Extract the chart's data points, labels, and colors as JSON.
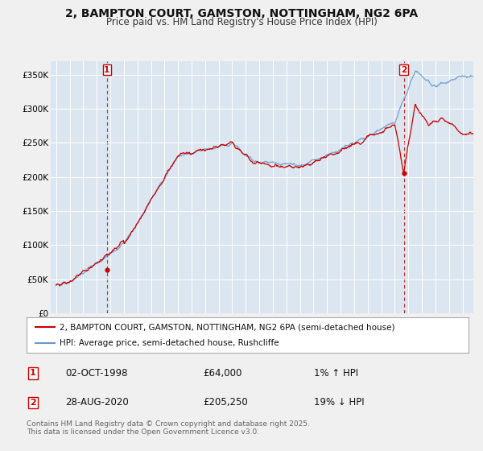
{
  "title": "2, BAMPTON COURT, GAMSTON, NOTTINGHAM, NG2 6PA",
  "subtitle": "Price paid vs. HM Land Registry's House Price Index (HPI)",
  "background_color": "#f0f0f0",
  "plot_bg_color": "#dce6f0",
  "ylim": [
    0,
    370000
  ],
  "yticks": [
    0,
    50000,
    100000,
    150000,
    200000,
    250000,
    300000,
    350000
  ],
  "ytick_labels": [
    "£0",
    "£50K",
    "£100K",
    "£150K",
    "£200K",
    "£250K",
    "£300K",
    "£350K"
  ],
  "xlim_start": 1994.6,
  "xlim_end": 2025.8,
  "xticks": [
    1995,
    1996,
    1997,
    1998,
    1999,
    2000,
    2001,
    2002,
    2003,
    2004,
    2005,
    2006,
    2007,
    2008,
    2009,
    2010,
    2011,
    2012,
    2013,
    2014,
    2015,
    2016,
    2017,
    2018,
    2019,
    2020,
    2021,
    2022,
    2023,
    2024,
    2025
  ],
  "sale1_x": 1998.75,
  "sale1_y": 64000,
  "sale2_x": 2020.66,
  "sale2_y": 205250,
  "sale_marker_color": "#cc0000",
  "sale_vline_color": "#cc0000",
  "hpi_line_color": "#6699cc",
  "price_line_color": "#cc0000",
  "legend_label_price": "2, BAMPTON COURT, GAMSTON, NOTTINGHAM, NG2 6PA (semi-detached house)",
  "legend_label_hpi": "HPI: Average price, semi-detached house, Rushcliffe",
  "sale1_date": "02-OCT-1998",
  "sale1_price": "£64,000",
  "sale1_hpi": "1% ↑ HPI",
  "sale2_date": "28-AUG-2020",
  "sale2_price": "£205,250",
  "sale2_hpi": "19% ↓ HPI",
  "footer": "Contains HM Land Registry data © Crown copyright and database right 2025.\nThis data is licensed under the Open Government Licence v3.0.",
  "title_fontsize": 10,
  "subtitle_fontsize": 8.5,
  "tick_fontsize": 7.5,
  "legend_fontsize": 7.5,
  "table_fontsize": 8.5,
  "footer_fontsize": 6.5
}
